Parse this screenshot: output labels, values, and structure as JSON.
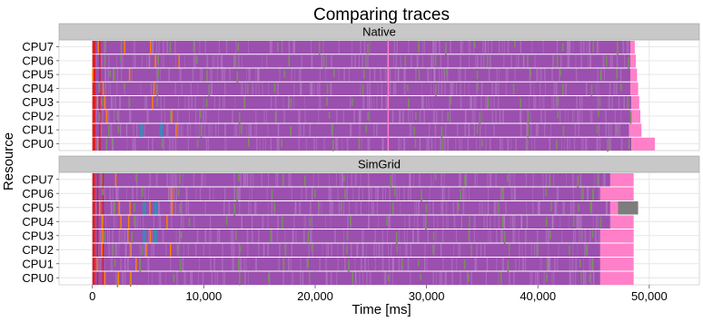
{
  "chart_data": {
    "type": "gantt",
    "title": "Comparing traces",
    "xlabel": "Time [ms]",
    "ylabel": "Resource",
    "xlim": [
      -3000,
      54500
    ],
    "xticks": [
      {
        "value": 0,
        "label": "0"
      },
      {
        "value": 10000,
        "label": "10,000"
      },
      {
        "value": 20000,
        "label": "20,000"
      },
      {
        "value": 30000,
        "label": "30,000"
      },
      {
        "value": 40000,
        "label": "40,000"
      },
      {
        "value": 50000,
        "label": "50,000"
      }
    ],
    "categories": [
      "CPU7",
      "CPU6",
      "CPU5",
      "CPU4",
      "CPU3",
      "CPU2",
      "CPU1",
      "CPU0"
    ],
    "grid": true,
    "colors": {
      "main": "#9b4fae",
      "pink": "#ff80c8",
      "red": "#e41a1c",
      "green": "#7a8f5e",
      "orange": "#ff8000",
      "blue": "#3c87b8",
      "gray": "#7d7d7d",
      "panel_bg": "#ffffff",
      "strip_bg": "#c8c8c8",
      "grid": "#e6e6e6"
    },
    "panels": [
      {
        "name": "Native",
        "end_ms": [
          48700,
          48800,
          48900,
          49000,
          49100,
          49200,
          49300,
          50500
        ],
        "pink_tail_start_ms": [
          48300,
          48300,
          48300,
          48300,
          48400,
          48300,
          48200,
          48400
        ],
        "extra_pink_ms": [
          26500
        ],
        "green_events_ms": [
          1200,
          2500,
          6500,
          9800,
          13500,
          17000,
          21000,
          24000,
          28500,
          31500,
          35000,
          38500,
          42000,
          45500,
          47500
        ],
        "orange_events_ms": [
          300,
          1100,
          2900,
          5400,
          7400
        ],
        "blue_events_ms": [
          4200,
          6000
        ],
        "red_events_ms": [
          150,
          600
        ]
      },
      {
        "name": "SimGrid",
        "end_ms": [
          48600,
          48600,
          48600,
          48600,
          48600,
          48600,
          48600,
          48600
        ],
        "pink_tail_start_ms": [
          46500,
          45600,
          46500,
          46500,
          45600,
          45600,
          45600,
          45600
        ],
        "gray_block": {
          "category": "CPU5",
          "start_ms": 47200,
          "end_ms": 49000
        },
        "green_events_ms": [
          1500,
          4000,
          8000,
          12500,
          16500,
          19500,
          23000,
          27000,
          30000,
          33500,
          37000,
          40500,
          43500,
          45000
        ],
        "orange_events_ms": [
          800,
          2100,
          3500,
          5200,
          7000
        ],
        "blue_events_ms": [
          4500,
          5500
        ],
        "red_events_ms": [
          100,
          400,
          900
        ]
      }
    ]
  }
}
